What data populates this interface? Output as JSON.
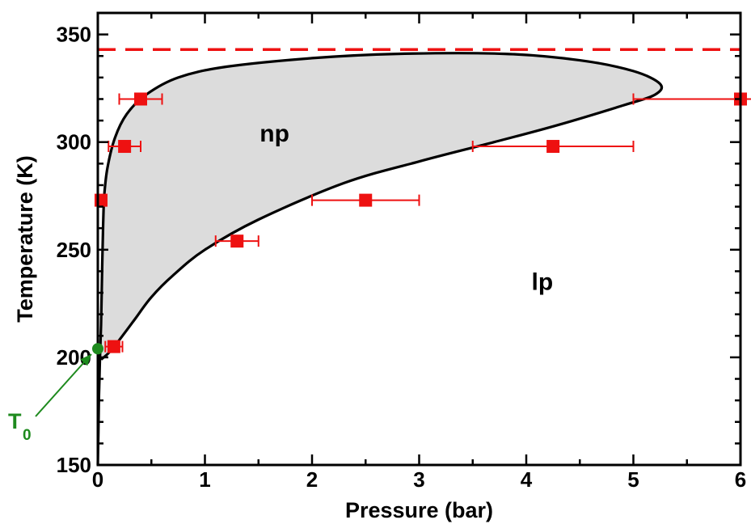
{
  "chart_data": {
    "type": "scatter",
    "xlabel": "Pressure (bar)",
    "ylabel": "Temperature (K)",
    "xlim": [
      0,
      6
    ],
    "ylim": [
      150,
      360
    ],
    "xticks": [
      "0",
      "1",
      "2",
      "3",
      "4",
      "5",
      "6"
    ],
    "yticks": [
      "150",
      "200",
      "250",
      "300",
      "350"
    ],
    "xtick_values": [
      0,
      1,
      2,
      3,
      4,
      5,
      6
    ],
    "ytick_values": [
      150,
      200,
      250,
      300,
      350
    ],
    "grid": false,
    "regions": [
      {
        "label": "np",
        "x": 1.65,
        "y": 304
      },
      {
        "label": "lp",
        "x": 4.15,
        "y": 235
      }
    ],
    "phase_boundary": {
      "color": "#000000",
      "fill": "#dcdcdc",
      "points": [
        [
          0.0,
          150
        ],
        [
          0.005,
          165
        ],
        [
          0.01,
          180
        ],
        [
          0.015,
          190
        ],
        [
          0.02,
          200
        ],
        [
          0.03,
          215
        ],
        [
          0.04,
          240
        ],
        [
          0.05,
          262
        ],
        [
          0.06,
          275
        ],
        [
          0.09,
          288
        ],
        [
          0.16,
          302
        ],
        [
          0.27,
          313
        ],
        [
          0.45,
          322
        ],
        [
          0.75,
          330
        ],
        [
          1.2,
          335
        ],
        [
          2.0,
          339
        ],
        [
          2.8,
          341
        ],
        [
          3.8,
          341
        ],
        [
          4.5,
          338
        ],
        [
          5.0,
          333
        ],
        [
          5.25,
          327
        ],
        [
          5.2,
          322
        ],
        [
          4.9,
          317
        ],
        [
          4.3,
          308
        ],
        [
          3.7,
          300
        ],
        [
          3.0,
          291
        ],
        [
          2.3,
          281
        ],
        [
          1.5,
          264
        ],
        [
          1.0,
          250
        ],
        [
          0.7,
          238
        ],
        [
          0.5,
          228
        ],
        [
          0.35,
          218
        ],
        [
          0.2,
          208
        ],
        [
          0.1,
          202
        ],
        [
          0.03,
          199
        ]
      ]
    },
    "reference_line": {
      "y": 343,
      "color": "#ee1111",
      "style": "dashed"
    },
    "series": [
      {
        "color": "#ee1111",
        "marker": "square",
        "points": [
          {
            "x": 0.4,
            "y": 320,
            "xerr": 0.2
          },
          {
            "x": 0.25,
            "y": 298,
            "xerr": 0.15
          },
          {
            "x": 0.03,
            "y": 273,
            "xerr": 0.0
          },
          {
            "x": 1.3,
            "y": 254,
            "xerr": 0.2
          },
          {
            "x": 2.5,
            "y": 273,
            "xerr": 0.5
          },
          {
            "x": 4.25,
            "y": 298,
            "xerr": 0.75
          },
          {
            "x": 6.0,
            "y": 320,
            "xerr": 1.0
          },
          {
            "x": 0.15,
            "y": 205,
            "xerr": 0.08
          }
        ]
      }
    ],
    "annotation": {
      "label": "T",
      "subscript": "0",
      "color": "#1e8a1e",
      "point": {
        "x": 0.0,
        "y": 204
      }
    }
  }
}
